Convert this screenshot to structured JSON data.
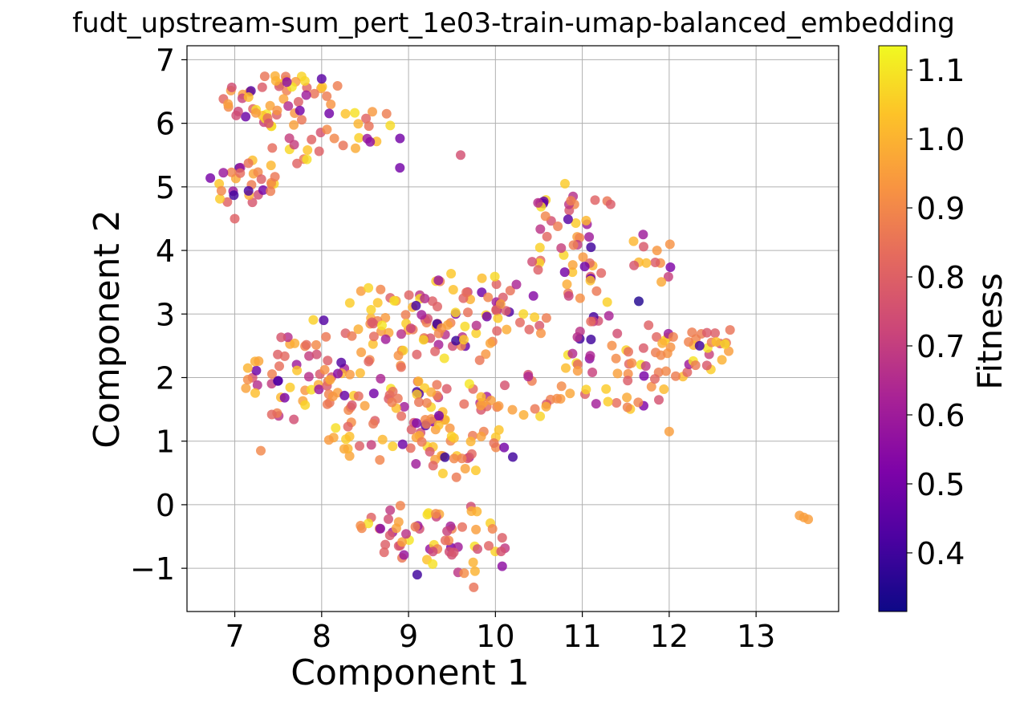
{
  "chart_data": {
    "type": "scatter",
    "title": "fudt_upstream-sum_pert_1e03-train-umap-balanced_embedding",
    "xlabel": "Component 1",
    "ylabel": "Component 2",
    "xlim": [
      6.45,
      13.95
    ],
    "ylim": [
      -1.68,
      7.22
    ],
    "x_ticks": [
      "7",
      "8",
      "9",
      "10",
      "11",
      "12",
      "13"
    ],
    "y_ticks": [
      "−1",
      "0",
      "1",
      "2",
      "3",
      "4",
      "5",
      "6",
      "7"
    ],
    "grid": true,
    "colorbar": {
      "label": "Fitness",
      "range": [
        0.315,
        1.135
      ],
      "ticks": [
        "0.4",
        "0.5",
        "0.6",
        "0.7",
        "0.8",
        "0.9",
        "1.0",
        "1.1"
      ],
      "colormap": "plasma"
    },
    "point_color_range": [
      "#0d0887",
      "#f0f921"
    ],
    "points_sample": [
      {
        "x": 7.6,
        "y": 6.65,
        "fitness": 0.55
      },
      {
        "x": 7.75,
        "y": 6.2,
        "fitness": 0.5
      },
      {
        "x": 8.0,
        "y": 6.7,
        "fitness": 0.45
      },
      {
        "x": 7.0,
        "y": 4.5,
        "fitness": 0.8
      },
      {
        "x": 8.9,
        "y": 5.3,
        "fitness": 0.5
      },
      {
        "x": 9.6,
        "y": 5.5,
        "fitness": 0.75
      },
      {
        "x": 10.8,
        "y": 5.05,
        "fitness": 1.05
      },
      {
        "x": 11.7,
        "y": 4.25,
        "fitness": 0.6
      },
      {
        "x": 11.1,
        "y": 4.05,
        "fitness": 0.4
      },
      {
        "x": 11.65,
        "y": 3.2,
        "fitness": 0.35
      },
      {
        "x": 11.1,
        "y": 2.6,
        "fitness": 0.4
      },
      {
        "x": 12.35,
        "y": 2.5,
        "fitness": 0.4
      },
      {
        "x": 12.7,
        "y": 2.75,
        "fitness": 0.85
      },
      {
        "x": 12.0,
        "y": 1.15,
        "fitness": 0.95
      },
      {
        "x": 10.2,
        "y": 0.75,
        "fitness": 0.4
      },
      {
        "x": 10.1,
        "y": 0.9,
        "fitness": 0.5
      },
      {
        "x": 9.1,
        "y": -1.1,
        "fitness": 0.4
      },
      {
        "x": 9.35,
        "y": 1.4,
        "fitness": 0.5
      },
      {
        "x": 8.6,
        "y": 1.75,
        "fitness": 0.5
      },
      {
        "x": 7.5,
        "y": 1.95,
        "fitness": 0.45
      },
      {
        "x": 7.15,
        "y": 2.15,
        "fitness": 1.0
      },
      {
        "x": 7.3,
        "y": 0.85,
        "fitness": 0.9
      },
      {
        "x": 9.75,
        "y": -1.3,
        "fitness": 0.85
      },
      {
        "x": 9.7,
        "y": 1.9,
        "fitness": 1.1
      },
      {
        "x": 10.45,
        "y": 2.95,
        "fitness": 1.05
      },
      {
        "x": 13.55,
        "y": -0.2,
        "fitness": 0.95
      },
      {
        "x": 13.6,
        "y": -0.23,
        "fitness": 0.95
      },
      {
        "x": 13.5,
        "y": -0.17,
        "fitness": 0.95
      }
    ]
  }
}
